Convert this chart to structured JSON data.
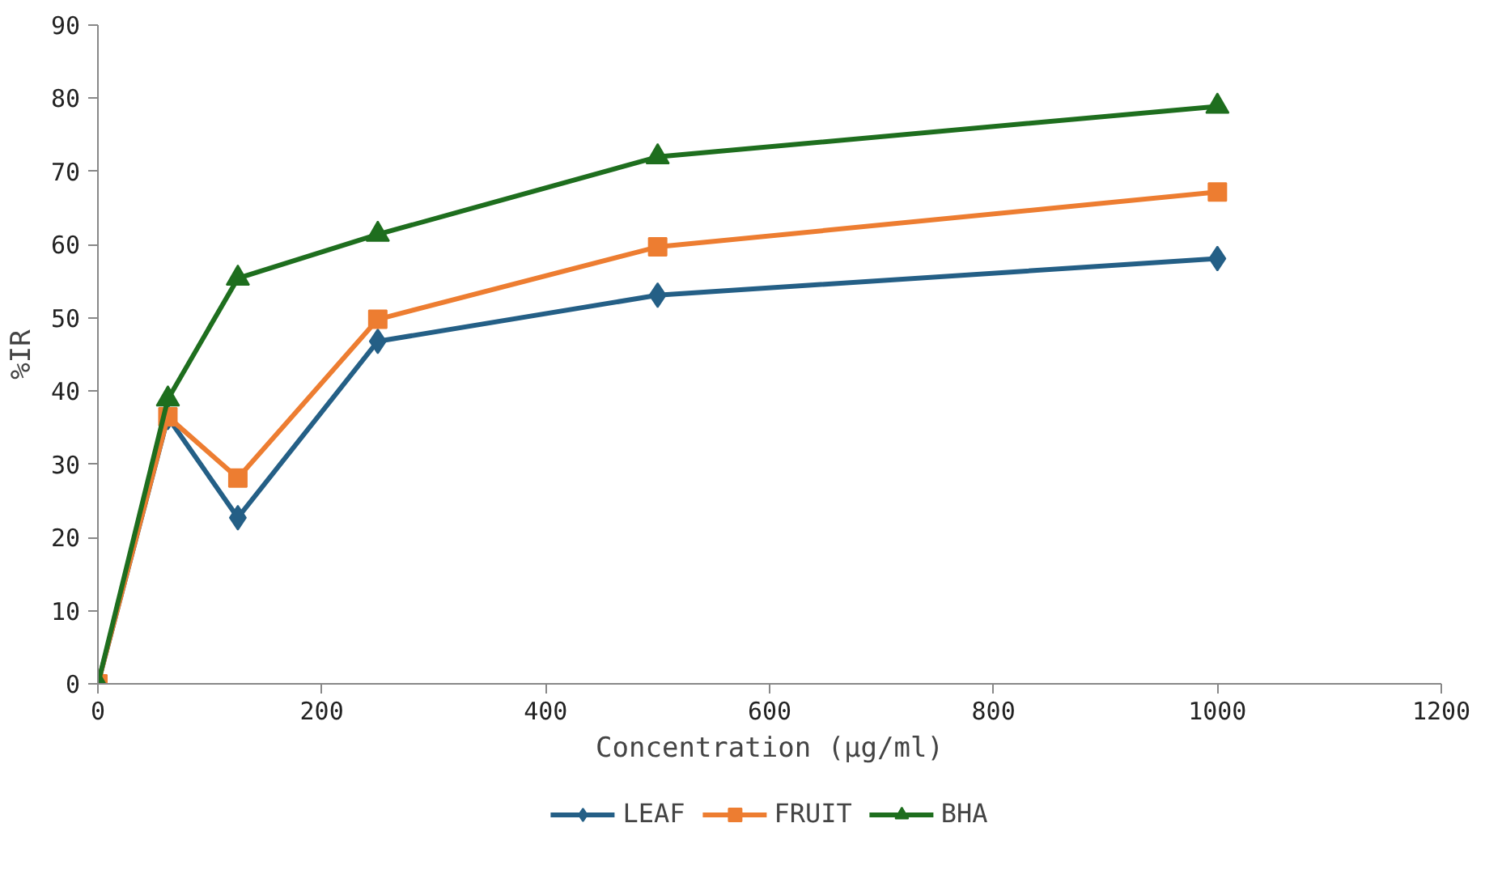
{
  "chart_data": {
    "type": "line",
    "xlabel": "Concentration (µg/ml)",
    "ylabel": "%IR",
    "x": [
      0,
      62.5,
      125,
      250,
      500,
      1000
    ],
    "xlim": [
      0,
      1200
    ],
    "xticks": [
      0,
      200,
      400,
      600,
      800,
      1000,
      1200
    ],
    "ylim": [
      0,
      90
    ],
    "yticks": [
      0,
      10,
      20,
      30,
      40,
      50,
      60,
      70,
      80,
      90
    ],
    "grid": false,
    "legend": "bottom",
    "line_style": "solid",
    "series": [
      {
        "name": "LEAF",
        "color": "#245f86",
        "marker": "diamond",
        "values": [
          0,
          36.4,
          22.7,
          46.8,
          53.1,
          58.1
        ]
      },
      {
        "name": "FRUIT",
        "color": "#ed7d31",
        "marker": "square",
        "values": [
          0,
          36.5,
          28.1,
          49.8,
          59.7,
          67.2
        ]
      },
      {
        "name": "BHA",
        "color": "#1e6e1e",
        "marker": "triangle",
        "values": [
          0,
          38.9,
          55.4,
          61.4,
          72.0,
          78.9
        ]
      }
    ]
  }
}
